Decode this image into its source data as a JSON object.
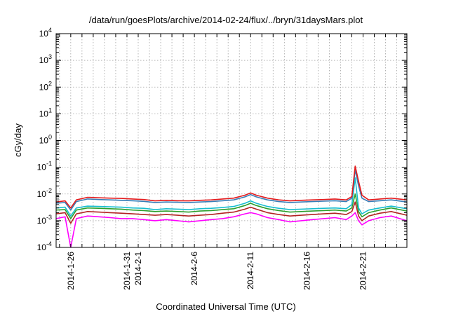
{
  "chart_data": {
    "type": "line",
    "title": "/data/run/goesPlots/archive/2014-02-24/flux/../bryn/31daysMars.plot",
    "xlabel": "Coordinated Universal Time (UTC)",
    "ylabel": "cGy/day",
    "yscale": "log",
    "ylim": [
      0.0001,
      10000
    ],
    "xlim_days": [
      -1.3,
      29.9
    ],
    "x_origin": "2014-01-26",
    "grid": true,
    "legend": "none",
    "y_ticks": [
      {
        "value": 0.0001,
        "mantissa": "10",
        "exp": "-4"
      },
      {
        "value": 0.001,
        "mantissa": "10",
        "exp": "-3"
      },
      {
        "value": 0.01,
        "mantissa": "10",
        "exp": "-2"
      },
      {
        "value": 0.1,
        "mantissa": "10",
        "exp": "-1"
      },
      {
        "value": 1,
        "mantissa": "10",
        "exp": "0"
      },
      {
        "value": 10,
        "mantissa": "10",
        "exp": "1"
      },
      {
        "value": 100,
        "mantissa": "10",
        "exp": "2"
      },
      {
        "value": 1000,
        "mantissa": "10",
        "exp": "3"
      },
      {
        "value": 10000,
        "mantissa": "10",
        "exp": "4"
      }
    ],
    "x_ticks": [
      {
        "day": 0,
        "label": "2014-1-26"
      },
      {
        "day": 5,
        "label": "2014-1-31"
      },
      {
        "day": 6,
        "label": "2014-2-1"
      },
      {
        "day": 11,
        "label": "2014-2-6"
      },
      {
        "day": 16,
        "label": "2014-2-11"
      },
      {
        "day": 21,
        "label": "2014-2-16"
      },
      {
        "day": 26,
        "label": "2014-2-21"
      }
    ],
    "x_days": [
      -1.3,
      -0.5,
      0,
      0.5,
      1.5,
      2.5,
      3.5,
      4.5,
      5.5,
      6.5,
      7.5,
      8.5,
      9.5,
      10.5,
      11.5,
      12.5,
      13.5,
      14.5,
      15.5,
      16,
      16.5,
      17.5,
      18.5,
      19.5,
      20.5,
      21.5,
      22.5,
      23.5,
      24.5,
      25,
      25.3,
      25.6,
      25.9,
      26.5,
      27.5,
      28.5,
      29.9
    ],
    "series": [
      {
        "color": "#e41a1c",
        "values": [
          0.005,
          0.0055,
          0.003,
          0.006,
          0.0075,
          0.0072,
          0.007,
          0.0068,
          0.0065,
          0.0062,
          0.0055,
          0.0058,
          0.0056,
          0.0055,
          0.0058,
          0.006,
          0.0065,
          0.007,
          0.009,
          0.011,
          0.009,
          0.007,
          0.006,
          0.0055,
          0.0058,
          0.006,
          0.0062,
          0.0065,
          0.006,
          0.008,
          0.11,
          0.03,
          0.009,
          0.006,
          0.0065,
          0.007,
          0.006
        ]
      },
      {
        "color": "#377eb8",
        "values": [
          0.0045,
          0.0048,
          0.0025,
          0.0052,
          0.0065,
          0.0062,
          0.006,
          0.0058,
          0.0056,
          0.0053,
          0.0048,
          0.005,
          0.0049,
          0.0048,
          0.005,
          0.0052,
          0.0056,
          0.006,
          0.0078,
          0.0095,
          0.0078,
          0.006,
          0.0052,
          0.0048,
          0.005,
          0.0052,
          0.0054,
          0.0056,
          0.0052,
          0.007,
          0.08,
          0.02,
          0.007,
          0.0052,
          0.0056,
          0.006,
          0.005
        ]
      },
      {
        "color": "#17becf",
        "values": [
          0.003,
          0.0032,
          0.0015,
          0.003,
          0.0035,
          0.0034,
          0.0033,
          0.0032,
          0.003,
          0.0029,
          0.0026,
          0.0028,
          0.0027,
          0.0026,
          0.0028,
          0.0029,
          0.0031,
          0.0034,
          0.0045,
          0.0055,
          0.0045,
          0.0034,
          0.0029,
          0.0026,
          0.0027,
          0.0028,
          0.0029,
          0.003,
          0.0028,
          0.004,
          0.04,
          0.003,
          0.0018,
          0.0025,
          0.003,
          0.0035,
          0.0028
        ]
      },
      {
        "color": "#2ca02c",
        "values": [
          0.0025,
          0.0026,
          0.0012,
          0.0025,
          0.003,
          0.0029,
          0.0028,
          0.0027,
          0.0025,
          0.0024,
          0.0022,
          0.0023,
          0.0022,
          0.0021,
          0.0023,
          0.0024,
          0.0026,
          0.0028,
          0.0037,
          0.0045,
          0.0037,
          0.0028,
          0.0024,
          0.0021,
          0.0022,
          0.0023,
          0.0024,
          0.0025,
          0.0023,
          0.003,
          0.01,
          0.0022,
          0.0014,
          0.002,
          0.0025,
          0.003,
          0.0023
        ]
      },
      {
        "color": "#b22222",
        "values": [
          0.0018,
          0.002,
          0.0008,
          0.0018,
          0.0022,
          0.0021,
          0.002,
          0.0019,
          0.0018,
          0.0017,
          0.0016,
          0.0017,
          0.0016,
          0.0015,
          0.0016,
          0.0017,
          0.0019,
          0.0021,
          0.0027,
          0.0032,
          0.0027,
          0.002,
          0.0017,
          0.0015,
          0.0016,
          0.0017,
          0.0018,
          0.0019,
          0.0017,
          0.0022,
          0.005,
          0.0015,
          0.001,
          0.0015,
          0.0019,
          0.0022,
          0.0016
        ]
      },
      {
        "color": "#ff00ff",
        "values": [
          0.0012,
          0.0014,
          0.0001,
          0.0012,
          0.0015,
          0.0014,
          0.0013,
          0.0012,
          0.0012,
          0.0011,
          0.001,
          0.0011,
          0.001,
          0.0009,
          0.001,
          0.0011,
          0.0012,
          0.0014,
          0.0018,
          0.002,
          0.0018,
          0.0013,
          0.0011,
          0.0009,
          0.001,
          0.0011,
          0.0012,
          0.0013,
          0.0011,
          0.0015,
          0.002,
          0.001,
          0.0007,
          0.001,
          0.0013,
          0.0015,
          0.001
        ]
      }
    ]
  }
}
